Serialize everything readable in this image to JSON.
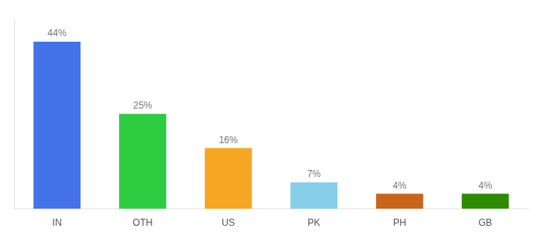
{
  "chart_data": {
    "type": "bar",
    "categories": [
      "IN",
      "OTH",
      "US",
      "PK",
      "PH",
      "GB"
    ],
    "values": [
      44,
      25,
      16,
      7,
      4,
      4
    ],
    "value_labels": [
      "44%",
      "25%",
      "16%",
      "7%",
      "4%",
      "4%"
    ],
    "colors": [
      "#4472e8",
      "#2ecc40",
      "#f5a623",
      "#87ceeb",
      "#c8651a",
      "#2e8b00"
    ],
    "ylim": [
      0,
      50
    ],
    "grid": false,
    "tick_labels": "x",
    "data_labels": true
  }
}
